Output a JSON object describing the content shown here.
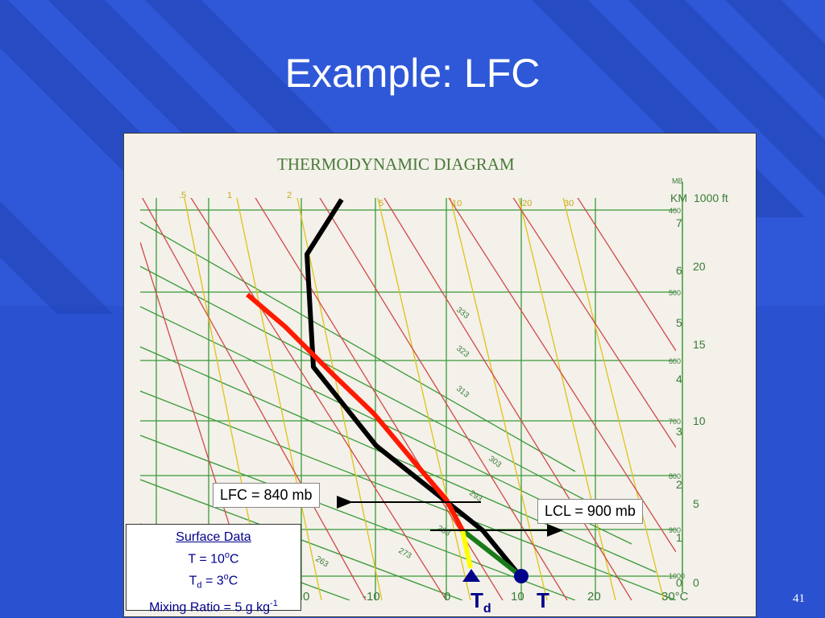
{
  "slide": {
    "title": "Example:  LFC",
    "page_number": "41",
    "colors": {
      "background": "#2f58d8",
      "stripe": "#2245b8",
      "title": "#ffffff"
    }
  },
  "diagram": {
    "heading": "THERMODYNAMIC DIAGRAM",
    "right_axis": {
      "mb_label": "MB",
      "km_label": "KM",
      "ft_label": "1000 ft",
      "pressure_ticks": [
        "400",
        "500",
        "600",
        "700",
        "800",
        "900",
        "1000"
      ],
      "km_ticks": [
        "7",
        "6",
        "5",
        "4",
        "3",
        "2",
        "1",
        "0"
      ],
      "ft_ticks": [
        "20",
        "15",
        "10",
        "5",
        "0"
      ]
    },
    "bottom_ticks": [
      "-10",
      "0",
      "10",
      "20",
      "30°C"
    ],
    "left_partial_tick": "0",
    "mixing_ratio_labels": [
      ".5",
      "1",
      "2",
      "5",
      "10",
      "20",
      "30"
    ],
    "adiabat_labels": [
      "333",
      "323",
      "313",
      "303",
      "293",
      "283",
      "273",
      "263"
    ],
    "lfc_label": "LFC = 840 mb",
    "lcl_label": "LCL = 900 mb",
    "colors": {
      "isotherm": "#3a9a3a",
      "mixing_ratio": "#e0c21a",
      "dry_adiabat": "#d04a4a",
      "sounding": "#000000",
      "parcel": "#ff1a00",
      "dewpoint_path": "#ffff00",
      "dry_ascent": "#1a7a1a",
      "marker": "#00008b"
    }
  },
  "surface_box": {
    "heading": "Surface Data",
    "t_prefix": "T = 10",
    "t_sup": "o",
    "t_unit": "C",
    "td_T": "T",
    "td_sub": "d",
    "td_value": " = 3",
    "td_sup": "o",
    "td_unit": "C",
    "mr_text": "Mixing Ratio = 5 g kg",
    "mr_sup": "-1"
  },
  "markers": {
    "td_T": "T",
    "td_sub": "d",
    "t": "T"
  }
}
